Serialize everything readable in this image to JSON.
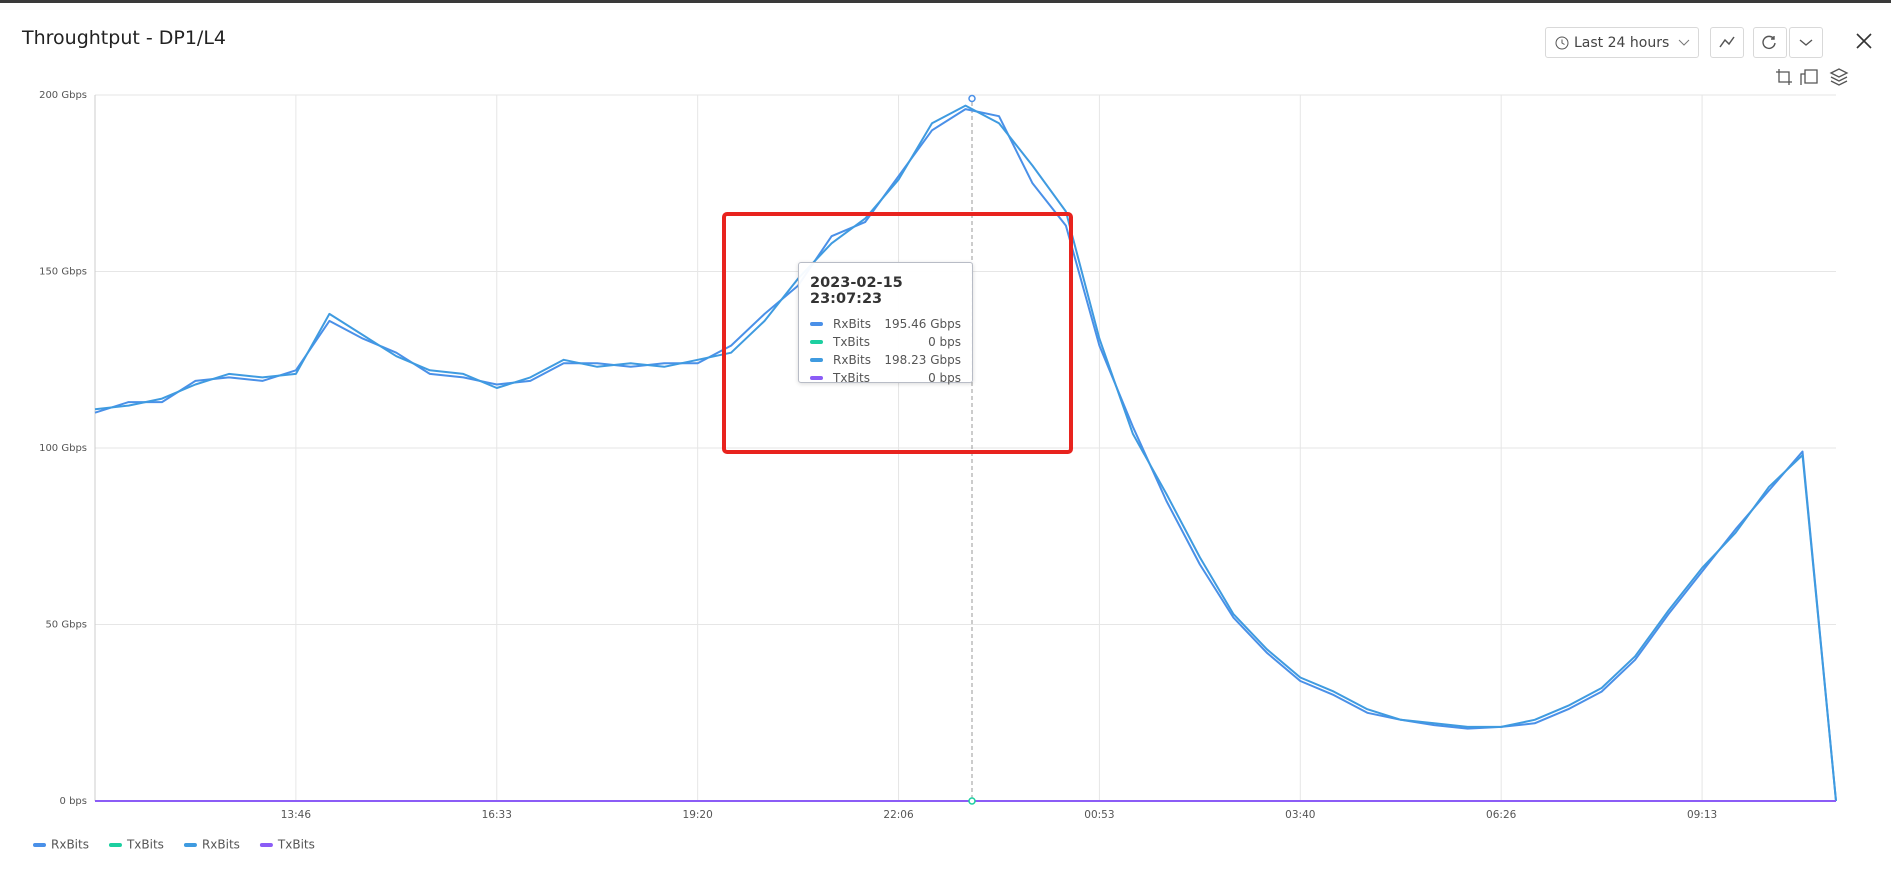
{
  "header": {
    "title": "Throughtput - DP1/L4",
    "range": "Last 24 hours"
  },
  "chart_data": {
    "type": "line",
    "categories": [
      null,
      null,
      null,
      null,
      null,
      null,
      "13:46",
      null,
      null,
      null,
      null,
      null,
      "16:33",
      null,
      null,
      null,
      null,
      null,
      "19:20",
      null,
      null,
      null,
      null,
      null,
      "22:06",
      null,
      null,
      null,
      null,
      null,
      "00:53",
      null,
      null,
      null,
      null,
      null,
      "03:40",
      null,
      null,
      null,
      null,
      null,
      "06:26",
      null,
      null,
      null,
      null,
      null,
      "09:13",
      null,
      null,
      null,
      null
    ],
    "series": [
      {
        "name": "RxBits",
        "color": "#4a90e8",
        "values": [
          110,
          113,
          113,
          119,
          120,
          119,
          122,
          136,
          131,
          127,
          121,
          120,
          118,
          119,
          124,
          124,
          123,
          124,
          124,
          129,
          138,
          146,
          160,
          164,
          177,
          190,
          196,
          194,
          175,
          163,
          129,
          106,
          85,
          67,
          52,
          42,
          34,
          30,
          25,
          23,
          21.5,
          20.5,
          21,
          22,
          26,
          31,
          40,
          53,
          65,
          77,
          88,
          99,
          0
        ]
      },
      {
        "name": "TxBits",
        "color": "#1ccfa0",
        "values": [
          0,
          0,
          0,
          0,
          0,
          0,
          0,
          0,
          0,
          0,
          0,
          0,
          0,
          0,
          0,
          0,
          0,
          0,
          0,
          0,
          0,
          0,
          0,
          0,
          0,
          0,
          0,
          0,
          0,
          0,
          0,
          0,
          0,
          0,
          0,
          0,
          0,
          0,
          0,
          0,
          0,
          0,
          0,
          0,
          0,
          0,
          0,
          0,
          0,
          0,
          0,
          0,
          0
        ]
      },
      {
        "name": "RxBits",
        "color": "#3f9be0",
        "values": [
          111,
          112,
          114,
          118,
          121,
          120,
          121,
          138,
          132,
          126,
          122,
          121,
          117,
          120,
          125,
          123,
          124,
          123,
          125,
          127,
          136,
          148,
          158,
          165,
          176,
          192,
          197,
          192,
          180,
          167,
          131,
          104,
          87,
          69,
          53,
          43,
          35,
          31,
          26,
          23,
          22,
          21,
          21,
          23,
          27,
          32,
          41,
          54,
          66,
          76,
          89,
          98,
          0
        ]
      },
      {
        "name": "TxBits",
        "color": "#8b5cf6",
        "values": [
          0,
          0,
          0,
          0,
          0,
          0,
          0,
          0,
          0,
          0,
          0,
          0,
          0,
          0,
          0,
          0,
          0,
          0,
          0,
          0,
          0,
          0,
          0,
          0,
          0,
          0,
          0,
          0,
          0,
          0,
          0,
          0,
          0,
          0,
          0,
          0,
          0,
          0,
          0,
          0,
          0,
          0,
          0,
          0,
          0,
          0,
          0,
          0,
          0,
          0,
          0,
          0,
          0
        ]
      }
    ],
    "ylim": [
      0,
      200
    ],
    "yticks": [
      {
        "value": 0,
        "label": "0 bps"
      },
      {
        "value": 50,
        "label": "50 Gbps"
      },
      {
        "value": 100,
        "label": "100 Gbps"
      },
      {
        "value": 150,
        "label": "150 Gbps"
      },
      {
        "value": 200,
        "label": "200 Gbps"
      }
    ],
    "grid": true
  },
  "tooltip": {
    "title": "2023-02-15 23:07:23",
    "rows": [
      {
        "name": "RxBits",
        "value": "195.46 Gbps"
      },
      {
        "name": "TxBits",
        "value": "0 bps"
      },
      {
        "name": "RxBits",
        "value": "198.23 Gbps"
      },
      {
        "name": "TxBits",
        "value": "0 bps"
      }
    ]
  }
}
